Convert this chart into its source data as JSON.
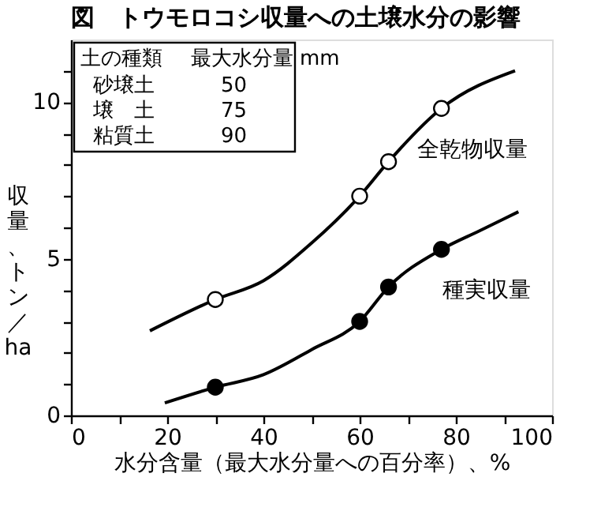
{
  "chart_data": {
    "type": "line",
    "title": "図　トウモロコシ収量への土壌水分の影響",
    "xlabel": "水分含量（最大水分量への百分率）、%",
    "ylabel": "収量、トン／ha",
    "xlim": [
      0,
      100
    ],
    "ylim": [
      0,
      12
    ],
    "xticks": [
      0,
      {
        "value": 10,
        "label": null
      },
      20,
      {
        "value": 30,
        "label": null
      },
      40,
      {
        "value": 50,
        "label": null
      },
      60,
      {
        "value": 70,
        "label": null
      },
      80,
      {
        "value": 90,
        "label": null
      },
      100
    ],
    "yticks": [
      0,
      {
        "value": 1,
        "label": null
      },
      {
        "value": 2,
        "label": null
      },
      {
        "value": 3,
        "label": null
      },
      {
        "value": 4,
        "label": null
      },
      5,
      {
        "value": 6,
        "label": null
      },
      {
        "value": 7,
        "label": null
      },
      {
        "value": 8,
        "label": null
      },
      {
        "value": 9,
        "label": null
      },
      10,
      {
        "value": 11,
        "label": null
      }
    ],
    "grid": false,
    "legend": false,
    "line_style": "solid",
    "series": [
      {
        "name": "全乾物収量",
        "type": "line",
        "color": "#000000",
        "marker": "none",
        "x": [
          16.4,
          30,
          40,
          50,
          60,
          66,
          77,
          92.3
        ],
        "values": [
          2.7,
          3.7,
          4.3,
          5.5,
          7.0,
          8.1,
          9.8,
          11.0
        ]
      },
      {
        "name": "種実収量",
        "type": "line",
        "color": "#000000",
        "marker": "none",
        "x": [
          19.5,
          30,
          40,
          50,
          60,
          66,
          77,
          85,
          93
        ],
        "values": [
          0.4,
          0.9,
          1.3,
          2.1,
          3.0,
          4.1,
          5.3,
          5.9,
          6.5
        ]
      },
      {
        "type": "scatter",
        "color": "#ffffff",
        "marker": "circle",
        "x": [
          30,
          60,
          66,
          77
        ],
        "values": [
          3.7,
          7.0,
          8.1,
          9.8
        ]
      },
      {
        "type": "scatter",
        "color": "#000000",
        "marker": "circle",
        "x": [
          30,
          60,
          66,
          77
        ],
        "values": [
          0.9,
          3.0,
          4.1,
          5.3
        ]
      }
    ],
    "annotations": [
      "土の種類",
      "最大水分量",
      "mm",
      "砂壌土",
      "50",
      "壌　土",
      "75",
      "粘質土",
      "90"
    ]
  }
}
